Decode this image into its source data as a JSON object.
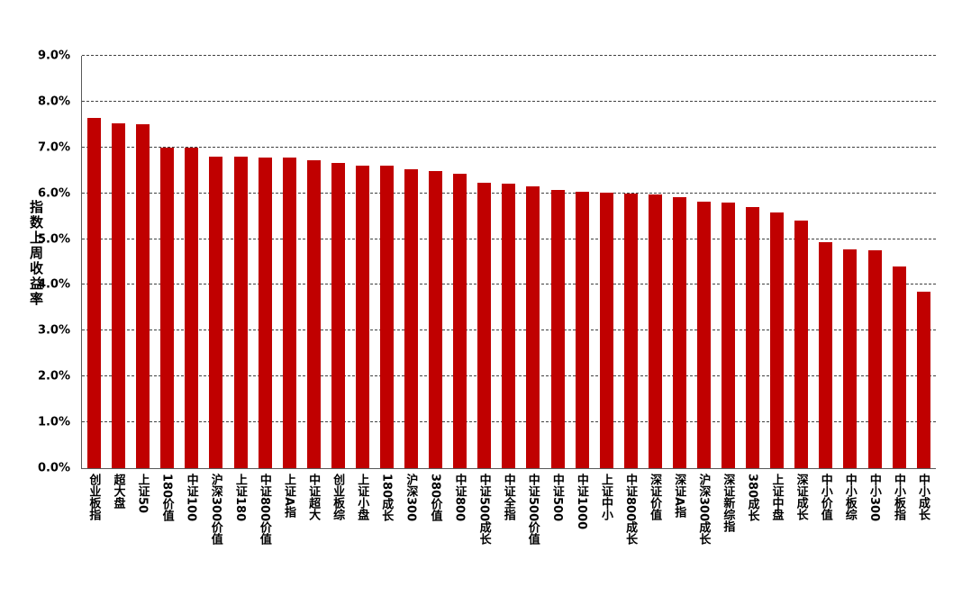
{
  "chart_data": {
    "type": "bar",
    "title": "",
    "ylabel": "指数上周收益率",
    "xlabel": "",
    "ylim": [
      0,
      9
    ],
    "ytick_step": 1,
    "ytick_format": "percent_1dp",
    "grid": "dashed-horizontal",
    "legend": "none",
    "bar_color": "#C00000",
    "categories": [
      "创业板指",
      "超大盘",
      "上证50",
      "180价值",
      "中证100",
      "沪深300价值",
      "上证180",
      "中证800价值",
      "上证A指",
      "中证超大",
      "创业板综",
      "上证小盘",
      "180成长",
      "沪深300",
      "380价值",
      "中证800",
      "中证500成长",
      "中证全指",
      "中证500价值",
      "中证500",
      "中证1000",
      "上证中小",
      "中证800成长",
      "深证价值",
      "深证A指",
      "沪深300成长",
      "深证新综指",
      "380成长",
      "上证中盘",
      "深证成长",
      "中小价值",
      "中小板综",
      "中小300",
      "中小板指",
      "中小成长"
    ],
    "values": [
      7.65,
      7.52,
      7.5,
      7.0,
      7.0,
      6.8,
      6.79,
      6.78,
      6.77,
      6.72,
      6.66,
      6.61,
      6.6,
      6.52,
      6.48,
      6.42,
      6.23,
      6.21,
      6.15,
      6.07,
      6.03,
      6.01,
      6.0,
      5.98,
      5.92,
      5.82,
      5.79,
      5.7,
      5.58,
      5.4,
      4.93,
      4.77,
      4.75,
      4.41,
      3.85
    ]
  }
}
